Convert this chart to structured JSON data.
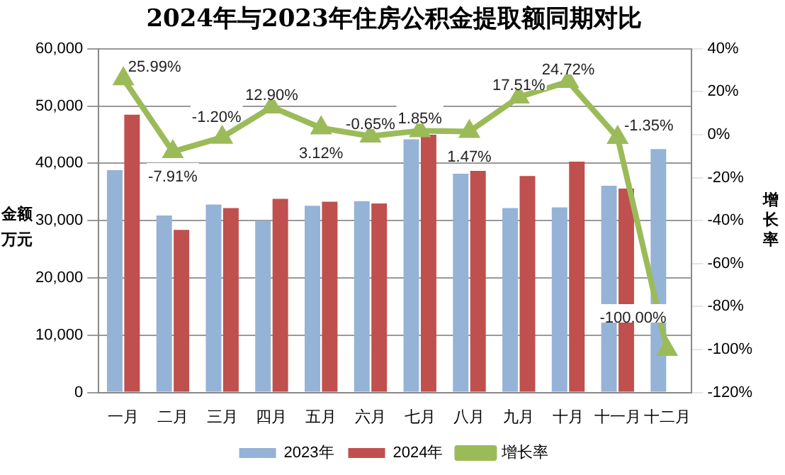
{
  "chart_data": {
    "type": "bar",
    "title": "2024年与2023年住房公积金提取额同期对比",
    "ylabel": "金额万元",
    "y2label": "增长率",
    "categories": [
      "一月",
      "二月",
      "三月",
      "四月",
      "五月",
      "六月",
      "七月",
      "八月",
      "九月",
      "十月",
      "十一月",
      "十二月"
    ],
    "series": [
      {
        "name": "2023年",
        "color": "#95b3d7",
        "values": [
          38800,
          30900,
          32800,
          30000,
          32600,
          33400,
          44200,
          38200,
          32200,
          32300,
          36100,
          42500
        ]
      },
      {
        "name": "2024年",
        "color": "#c0504d",
        "values": [
          48500,
          28400,
          32200,
          33800,
          33300,
          33000,
          45000,
          38700,
          37800,
          40300,
          35600,
          null
        ]
      },
      {
        "name": "增长率",
        "type": "line",
        "axis": "y2",
        "color": "#9bbb59",
        "marker": "triangle",
        "values": [
          25.99,
          -7.91,
          -1.2,
          12.9,
          3.12,
          -0.65,
          1.85,
          1.47,
          17.51,
          24.72,
          -1.35,
          -100
        ],
        "value_labels": [
          "25.99%",
          "-7.91%",
          "-1.20%",
          "12.90%",
          "3.12%",
          "-0.65%",
          "1.85%",
          "1.47%",
          "17.51%",
          "24.72%",
          "-1.35%",
          "-100.00%"
        ]
      }
    ],
    "ylim": [
      0,
      60000
    ],
    "yticks": [
      0,
      {
        "value": 10000,
        "label": "10,000"
      },
      {
        "value": 20000,
        "label": "20,000"
      },
      {
        "value": 30000,
        "label": "30,000"
      },
      {
        "value": 40000,
        "label": "40,000"
      },
      {
        "value": 50000,
        "label": "50,000"
      },
      {
        "value": 60000,
        "label": "60,000"
      }
    ],
    "y2lim": [
      -120,
      40
    ],
    "y2ticks": [
      {
        "value": -120,
        "label": "-120%"
      },
      {
        "value": -100,
        "label": "-100%"
      },
      {
        "value": -80,
        "label": "-80%"
      },
      {
        "value": -60,
        "label": "-60%"
      },
      {
        "value": -40,
        "label": "-40%"
      },
      {
        "value": -20,
        "label": "-20%"
      },
      {
        "value": 0,
        "label": "0%"
      },
      {
        "value": 20,
        "label": "20%"
      },
      {
        "value": 40,
        "label": "40%"
      }
    ],
    "grid": "y",
    "legend": "bottom"
  }
}
